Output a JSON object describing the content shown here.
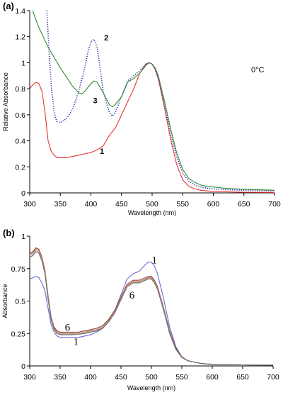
{
  "chart_data": [
    {
      "panel_label": "(a)",
      "type": "line",
      "xlabel": "Wavelength (nm)",
      "ylabel": "Relative Absorbance",
      "xlim": [
        300,
        700
      ],
      "ylim": [
        0,
        1.4
      ],
      "xticks": [
        300,
        350,
        400,
        450,
        500,
        550,
        600,
        650,
        700
      ],
      "yticks": [
        0,
        0.2,
        0.4,
        0.6,
        0.8,
        1,
        1.2,
        1.4
      ],
      "ytick_labels": [
        "0",
        "0.2",
        "0.4",
        "0.6",
        "0.8",
        "1",
        "1.2",
        "1.4"
      ],
      "annotation": "0°C",
      "series": [
        {
          "name": "1",
          "color": "#e8322f",
          "style": "solid",
          "x": [
            300,
            305,
            310,
            315,
            320,
            325,
            330,
            335,
            340,
            345,
            350,
            360,
            370,
            380,
            390,
            400,
            410,
            420,
            430,
            440,
            450,
            460,
            470,
            480,
            490,
            495,
            500,
            505,
            510,
            520,
            530,
            540,
            550,
            560,
            570,
            580,
            590,
            600,
            620,
            650,
            700
          ],
          "y": [
            0.8,
            0.83,
            0.85,
            0.84,
            0.78,
            0.62,
            0.4,
            0.32,
            0.29,
            0.27,
            0.27,
            0.27,
            0.28,
            0.29,
            0.3,
            0.31,
            0.33,
            0.36,
            0.44,
            0.5,
            0.6,
            0.7,
            0.8,
            0.92,
            0.99,
            1.0,
            0.99,
            0.95,
            0.88,
            0.66,
            0.42,
            0.22,
            0.1,
            0.05,
            0.03,
            0.02,
            0.015,
            0.01,
            0.008,
            0.005,
            0.003
          ]
        },
        {
          "name": "2",
          "color": "#2a2aa8",
          "style": "dotted",
          "x": [
            328,
            332,
            336,
            340,
            344,
            350,
            360,
            370,
            380,
            390,
            395,
            400,
            405,
            410,
            415,
            420,
            430,
            435,
            440,
            450,
            460,
            470,
            480,
            490,
            495,
            500,
            505,
            510,
            520,
            530,
            540,
            550,
            560,
            570,
            580,
            590,
            600,
            620,
            650,
            700
          ],
          "y": [
            1.4,
            1.05,
            0.78,
            0.62,
            0.55,
            0.54,
            0.57,
            0.64,
            0.78,
            0.96,
            1.08,
            1.16,
            1.18,
            1.12,
            0.96,
            0.78,
            0.62,
            0.59,
            0.62,
            0.74,
            0.86,
            0.9,
            0.94,
            0.99,
            1.0,
            0.99,
            0.95,
            0.88,
            0.68,
            0.46,
            0.28,
            0.15,
            0.09,
            0.06,
            0.045,
            0.035,
            0.03,
            0.025,
            0.02,
            0.015
          ]
        },
        {
          "name": "3",
          "color": "#2e8b2e",
          "style": "solid",
          "x": [
            305,
            310,
            315,
            320,
            325,
            330,
            340,
            350,
            360,
            370,
            380,
            385,
            390,
            400,
            405,
            410,
            420,
            430,
            435,
            440,
            450,
            460,
            470,
            480,
            490,
            495,
            500,
            505,
            510,
            520,
            530,
            540,
            550,
            560,
            570,
            580,
            590,
            600,
            620,
            650,
            700
          ],
          "y": [
            1.4,
            1.33,
            1.27,
            1.22,
            1.17,
            1.12,
            1.04,
            0.96,
            0.89,
            0.82,
            0.77,
            0.76,
            0.78,
            0.84,
            0.86,
            0.85,
            0.77,
            0.68,
            0.66,
            0.68,
            0.74,
            0.85,
            0.88,
            0.92,
            0.98,
            1.0,
            0.99,
            0.96,
            0.9,
            0.71,
            0.5,
            0.31,
            0.18,
            0.11,
            0.08,
            0.06,
            0.05,
            0.045,
            0.035,
            0.028,
            0.02
          ]
        }
      ],
      "curve_labels": [
        {
          "text": "1",
          "x": 418,
          "y": 0.3
        },
        {
          "text": "2",
          "x": 425,
          "y": 1.17
        },
        {
          "text": "3",
          "x": 407,
          "y": 0.69
        }
      ]
    },
    {
      "panel_label": "(b)",
      "type": "line",
      "xlabel": "Wavelength (nm)",
      "ylabel": "Absorbance",
      "xlim": [
        300,
        700
      ],
      "ylim": [
        0,
        1
      ],
      "xticks": [
        300,
        350,
        400,
        450,
        500,
        550,
        600,
        650,
        700
      ],
      "yticks": [
        0,
        0.25,
        0.5,
        0.75,
        1
      ],
      "ytick_labels": [
        "0",
        "0.25",
        "0.5",
        "0.75",
        "1"
      ],
      "series": [
        {
          "name": "1",
          "color": "#6b6bd8",
          "x": [
            300,
            305,
            310,
            315,
            320,
            325,
            330,
            335,
            340,
            345,
            350,
            360,
            370,
            380,
            390,
            400,
            410,
            420,
            430,
            440,
            450,
            460,
            470,
            480,
            490,
            495,
            500,
            505,
            510,
            520,
            530,
            540,
            550,
            560,
            570,
            580,
            590,
            600,
            620,
            650,
            700
          ],
          "y": [
            0.67,
            0.68,
            0.69,
            0.68,
            0.64,
            0.58,
            0.45,
            0.32,
            0.26,
            0.23,
            0.22,
            0.22,
            0.22,
            0.22,
            0.23,
            0.24,
            0.26,
            0.29,
            0.35,
            0.43,
            0.55,
            0.67,
            0.71,
            0.73,
            0.78,
            0.8,
            0.8,
            0.77,
            0.71,
            0.52,
            0.3,
            0.15,
            0.07,
            0.04,
            0.03,
            0.02,
            0.015,
            0.012,
            0.01,
            0.008,
            0.006
          ]
        },
        {
          "name": "",
          "color": "#8b3a3a",
          "x": [
            300,
            305,
            310,
            315,
            320,
            325,
            330,
            335,
            340,
            345,
            350,
            360,
            370,
            380,
            390,
            400,
            410,
            420,
            430,
            440,
            450,
            460,
            470,
            480,
            490,
            495,
            500,
            505,
            510,
            520,
            530,
            540,
            550,
            560,
            570,
            580,
            590,
            600,
            620,
            650,
            700
          ],
          "y": [
            0.87,
            0.88,
            0.91,
            0.9,
            0.84,
            0.74,
            0.55,
            0.38,
            0.3,
            0.27,
            0.26,
            0.26,
            0.26,
            0.26,
            0.27,
            0.28,
            0.29,
            0.31,
            0.36,
            0.43,
            0.53,
            0.63,
            0.66,
            0.66,
            0.68,
            0.69,
            0.69,
            0.66,
            0.61,
            0.45,
            0.27,
            0.14,
            0.07,
            0.04,
            0.03,
            0.02,
            0.016,
            0.013,
            0.01,
            0.008,
            0.006
          ]
        },
        {
          "name": "",
          "color": "#d07a3a",
          "x": [
            300,
            305,
            310,
            315,
            320,
            325,
            330,
            335,
            340,
            345,
            350,
            360,
            370,
            380,
            390,
            400,
            410,
            420,
            430,
            440,
            450,
            460,
            470,
            480,
            490,
            495,
            500,
            505,
            510,
            520,
            530,
            540,
            550,
            560,
            570,
            580,
            590,
            600,
            620,
            650,
            700
          ],
          "y": [
            0.86,
            0.87,
            0.9,
            0.89,
            0.83,
            0.73,
            0.54,
            0.37,
            0.29,
            0.26,
            0.25,
            0.25,
            0.25,
            0.25,
            0.26,
            0.27,
            0.28,
            0.3,
            0.35,
            0.42,
            0.52,
            0.62,
            0.65,
            0.65,
            0.67,
            0.68,
            0.68,
            0.65,
            0.6,
            0.44,
            0.26,
            0.13,
            0.065,
            0.04,
            0.03,
            0.02,
            0.015,
            0.012,
            0.01,
            0.008,
            0.006
          ]
        },
        {
          "name": "",
          "color": "#b0b0b0",
          "x": [
            300,
            305,
            310,
            315,
            320,
            325,
            330,
            335,
            340,
            345,
            350,
            360,
            370,
            380,
            390,
            400,
            410,
            420,
            430,
            440,
            450,
            460,
            470,
            480,
            490,
            495,
            500,
            505,
            510,
            520,
            530,
            540,
            550,
            560,
            570,
            580,
            590,
            600,
            620,
            650,
            700
          ],
          "y": [
            0.85,
            0.86,
            0.89,
            0.88,
            0.82,
            0.72,
            0.53,
            0.36,
            0.28,
            0.25,
            0.245,
            0.245,
            0.245,
            0.25,
            0.255,
            0.265,
            0.275,
            0.295,
            0.345,
            0.415,
            0.515,
            0.615,
            0.645,
            0.645,
            0.665,
            0.675,
            0.675,
            0.645,
            0.595,
            0.435,
            0.255,
            0.13,
            0.065,
            0.04,
            0.03,
            0.02,
            0.015,
            0.012,
            0.01,
            0.008,
            0.006
          ]
        },
        {
          "name": "6",
          "color": "#6b6b6b",
          "x": [
            300,
            305,
            310,
            315,
            320,
            325,
            330,
            335,
            340,
            345,
            350,
            360,
            370,
            380,
            390,
            400,
            410,
            420,
            430,
            440,
            450,
            460,
            470,
            480,
            490,
            495,
            500,
            505,
            510,
            520,
            530,
            540,
            550,
            560,
            570,
            580,
            590,
            600,
            620,
            650,
            700
          ],
          "y": [
            0.84,
            0.85,
            0.88,
            0.87,
            0.81,
            0.71,
            0.52,
            0.36,
            0.28,
            0.25,
            0.24,
            0.24,
            0.24,
            0.245,
            0.25,
            0.26,
            0.27,
            0.29,
            0.34,
            0.41,
            0.51,
            0.61,
            0.64,
            0.64,
            0.66,
            0.67,
            0.67,
            0.64,
            0.59,
            0.43,
            0.25,
            0.13,
            0.065,
            0.04,
            0.03,
            0.02,
            0.015,
            0.012,
            0.01,
            0.008,
            0.006
          ]
        }
      ],
      "curve_labels": [
        {
          "text": "1",
          "x": 505,
          "y": 0.79
        },
        {
          "text": "6",
          "x": 468,
          "y": 0.52
        },
        {
          "text": "6",
          "x": 362,
          "y": 0.27
        },
        {
          "text": "1",
          "x": 376,
          "y": 0.16
        }
      ]
    }
  ]
}
